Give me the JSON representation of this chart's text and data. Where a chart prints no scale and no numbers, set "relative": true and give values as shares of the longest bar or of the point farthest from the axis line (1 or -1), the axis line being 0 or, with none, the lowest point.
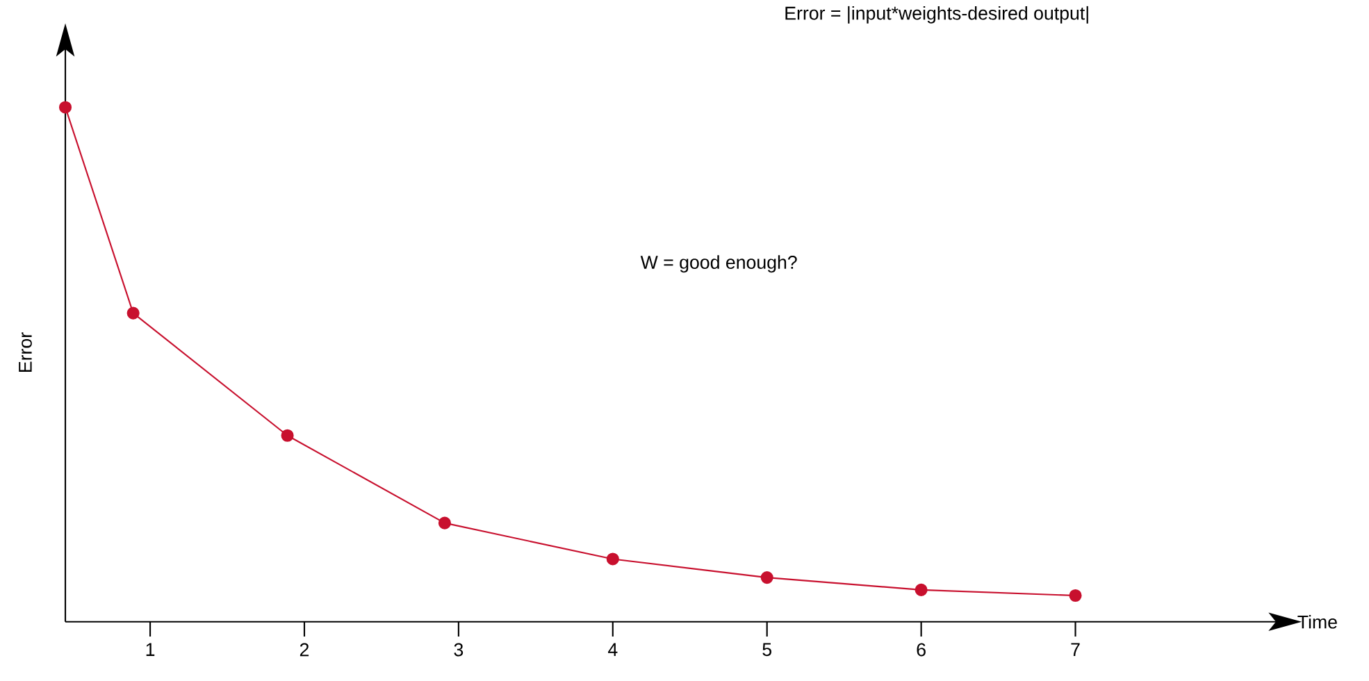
{
  "chart_data": {
    "type": "line",
    "relative": true,
    "annotations": [
      "Error = |input*weights-desired output|",
      "W = good enough?"
    ],
    "xlabel": "Time",
    "ylabel": "Error",
    "x": [
      0.45,
      0.89,
      1.89,
      2.91,
      4.0,
      5.0,
      6.0,
      7.0
    ],
    "values": [
      1,
      0.6,
      0.362,
      0.192,
      0.122,
      0.086,
      0.062,
      0.051
    ],
    "color": "#c8102e",
    "marker": "circle",
    "line_style": "solid",
    "xlim": [
      0.45,
      8.3
    ],
    "xticks": [
      1,
      2,
      3,
      4,
      5,
      6,
      7
    ]
  }
}
